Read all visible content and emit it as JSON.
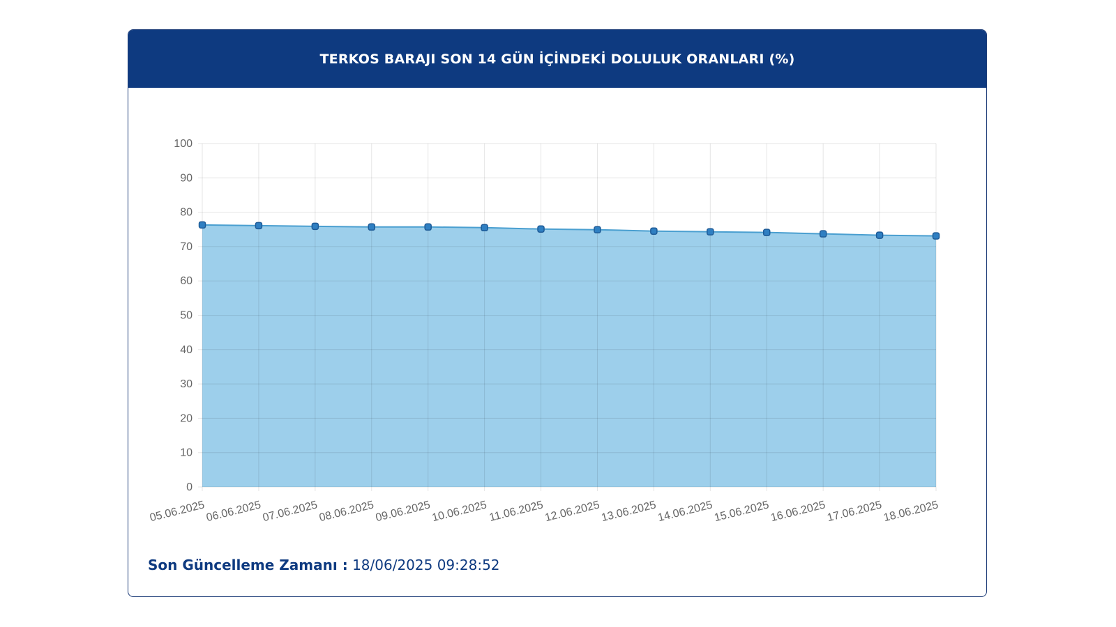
{
  "header": {
    "title": "TERKOS BARAJI SON 14 GÜN İÇİNDEKİ DOLULUK ORANLARI (%)"
  },
  "footer": {
    "label": "Son Güncelleme Zamanı :",
    "value": "18/06/2025 09:28:52"
  },
  "colors": {
    "header_bg": "#0e3a80",
    "area_fill": "#9dcfeb",
    "line": "#4a9fd0",
    "point_fill": "#2f7fc2",
    "point_stroke": "#1d5a96"
  },
  "chart_data": {
    "type": "area",
    "title": "TERKOS BARAJI SON 14 GÜN İÇİNDEKİ DOLULUK ORANLARI (%)",
    "xlabel": "",
    "ylabel": "",
    "ylim": [
      0,
      100
    ],
    "yticks": [
      0,
      10,
      20,
      30,
      40,
      50,
      60,
      70,
      80,
      90,
      100
    ],
    "grid": true,
    "legend": "none",
    "categories": [
      "05.06.2025",
      "06.06.2025",
      "07.06.2025",
      "08.06.2025",
      "09.06.2025",
      "10.06.2025",
      "11.06.2025",
      "12.06.2025",
      "13.06.2025",
      "14.06.2025",
      "15.06.2025",
      "16.06.2025",
      "17.06.2025",
      "18.06.2025"
    ],
    "series": [
      {
        "values": [
          76.3,
          76.1,
          75.9,
          75.7,
          75.7,
          75.5,
          75.1,
          74.9,
          74.5,
          74.3,
          74.1,
          73.7,
          73.3,
          73.1
        ]
      }
    ]
  }
}
